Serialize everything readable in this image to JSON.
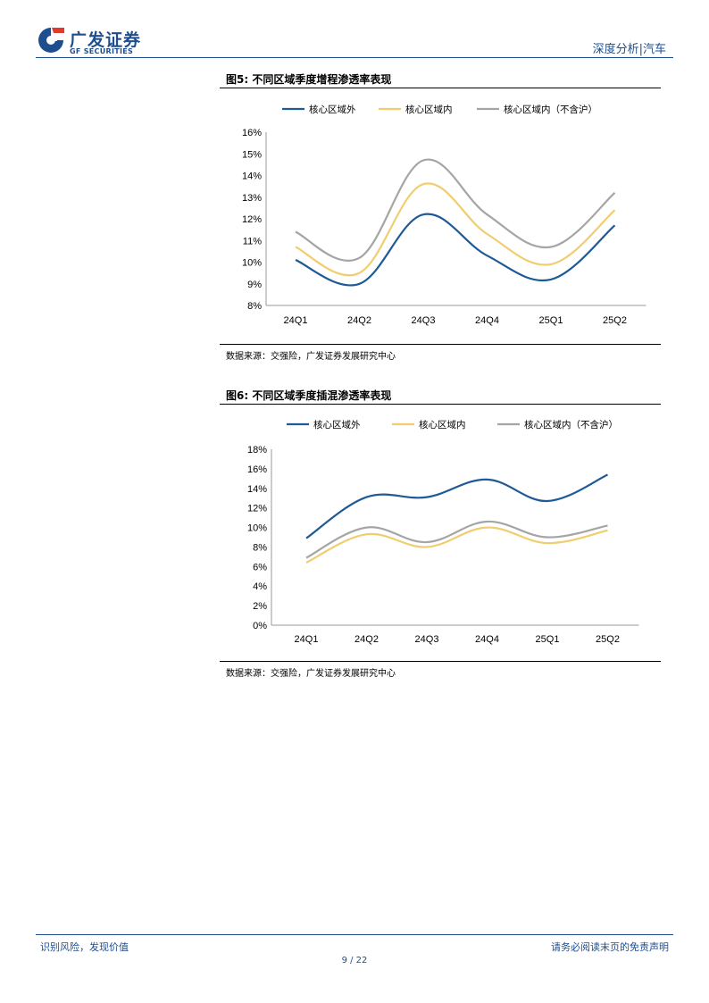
{
  "header": {
    "company_cn": "广发证券",
    "company_en": "GF SECURITIES",
    "section": "深度分析|汽车"
  },
  "figures": [
    {
      "title": "图5:  不同区域季度增程渗透率表现",
      "source": "数据来源：交强险，广发证券发展研究中心"
    },
    {
      "title": "图6:  不同区域季度插混渗透率表现",
      "source": "数据来源：交强险，广发证券发展研究中心"
    }
  ],
  "chart_data": [
    {
      "type": "line",
      "title": "",
      "xlabel": "",
      "ylabel": "",
      "categories": [
        "24Q1",
        "24Q2",
        "24Q3",
        "24Q4",
        "25Q1",
        "25Q2"
      ],
      "yticks": [
        "8%",
        "9%",
        "10%",
        "11%",
        "12%",
        "13%",
        "14%",
        "15%",
        "16%"
      ],
      "ylim": [
        8,
        16
      ],
      "legend": "top",
      "grid": false,
      "series": [
        {
          "name": "核心区域外",
          "color": "#1f5a96",
          "values": [
            10.1,
            9.0,
            12.2,
            10.3,
            9.2,
            11.7
          ]
        },
        {
          "name": "核心区域内",
          "color": "#f0cd6e",
          "values": [
            10.7,
            9.5,
            13.6,
            11.3,
            9.9,
            12.4
          ]
        },
        {
          "name": "核心区域内（不含沪）",
          "color": "#a5a5a5",
          "values": [
            11.4,
            10.2,
            14.7,
            12.2,
            10.7,
            13.2
          ]
        }
      ]
    },
    {
      "type": "line",
      "title": "",
      "xlabel": "",
      "ylabel": "",
      "categories": [
        "24Q1",
        "24Q2",
        "24Q3",
        "24Q4",
        "25Q1",
        "25Q2"
      ],
      "yticks": [
        "0%",
        "2%",
        "4%",
        "6%",
        "8%",
        "10%",
        "12%",
        "14%",
        "16%",
        "18%"
      ],
      "ylim": [
        0,
        18
      ],
      "legend": "top",
      "grid": false,
      "series": [
        {
          "name": "核心区域外",
          "color": "#1f5a96",
          "values": [
            8.9,
            13.1,
            13.1,
            14.9,
            12.7,
            15.4
          ]
        },
        {
          "name": "核心区域内",
          "color": "#f0cd6e",
          "values": [
            6.4,
            9.3,
            8.0,
            10.0,
            8.4,
            9.7
          ]
        },
        {
          "name": "核心区域内（不含沪）",
          "color": "#a5a5a5",
          "values": [
            6.9,
            10.0,
            8.5,
            10.6,
            9.0,
            10.2
          ]
        }
      ]
    }
  ],
  "footer": {
    "left": "识别风险，发现价值",
    "right": "请务必阅读末页的免责声明",
    "page": "9 / 22"
  }
}
